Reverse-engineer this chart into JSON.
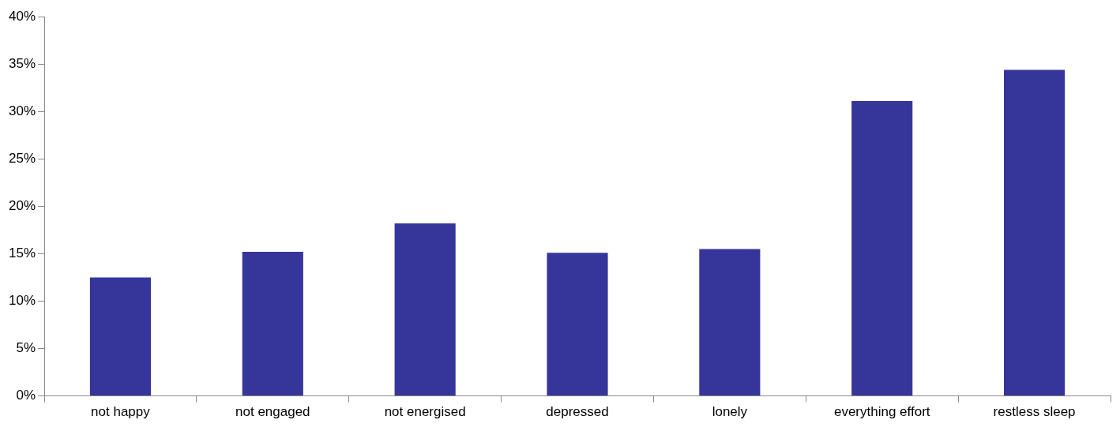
{
  "chart_data": {
    "type": "bar",
    "categories": [
      "not happy",
      "not engaged",
      "not energised",
      "depressed",
      "lonely",
      "everything effort",
      "restless sleep"
    ],
    "values": [
      12.5,
      15.2,
      18.2,
      15.1,
      15.5,
      31.1,
      34.4
    ],
    "color": "#35359a",
    "ylim": [
      0,
      40
    ],
    "yticks": [
      {
        "value": 0,
        "label": "0%"
      },
      {
        "value": 5,
        "label": "5%"
      },
      {
        "value": 10,
        "label": "10%"
      },
      {
        "value": 15,
        "label": "15%"
      },
      {
        "value": 20,
        "label": "20%"
      },
      {
        "value": 25,
        "label": "25%"
      },
      {
        "value": 30,
        "label": "30%"
      },
      {
        "value": 35,
        "label": "35%"
      },
      {
        "value": 40,
        "label": "40%"
      }
    ],
    "grid": false,
    "legend": false
  }
}
